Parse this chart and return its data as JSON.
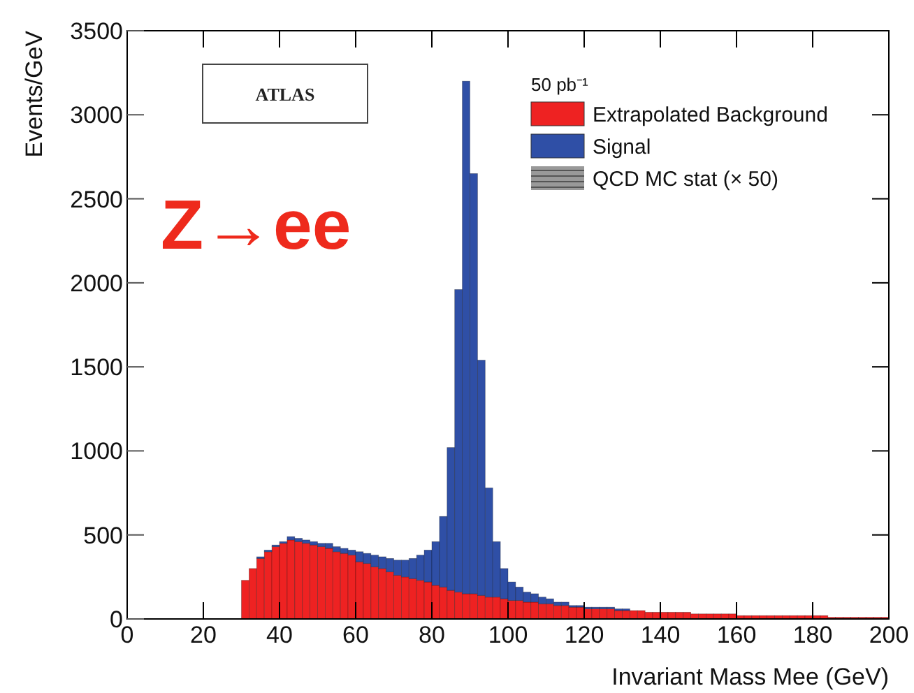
{
  "chart_data": {
    "type": "bar",
    "stacked": true,
    "xlabel": "Invariant Mass Mee (GeV)",
    "ylabel": "Events/GeV",
    "legend_title": "50 pb⁻¹",
    "legend": "top right",
    "annotations": [
      "ATLAS",
      "Z→ee",
      "QCD MC stat (× 50)"
    ],
    "x": [
      31,
      33,
      35,
      37,
      39,
      41,
      43,
      45,
      47,
      49,
      51,
      53,
      55,
      57,
      59,
      61,
      63,
      65,
      67,
      69,
      71,
      73,
      75,
      77,
      79,
      81,
      83,
      85,
      87,
      89,
      91,
      93,
      95,
      97,
      99,
      101,
      103,
      105,
      107,
      109,
      111,
      113,
      115,
      117,
      119,
      121,
      123,
      125,
      127,
      129,
      131,
      133,
      135,
      137,
      139,
      141,
      143,
      145,
      147,
      149,
      151,
      153,
      155,
      157,
      159,
      161,
      163,
      165,
      167,
      169,
      171,
      173,
      175,
      177,
      179,
      181,
      183,
      185,
      187,
      189,
      191,
      193,
      195,
      197,
      199
    ],
    "series": [
      {
        "name": "Extrapolated Background",
        "color": "#ee2222",
        "values": [
          230,
          300,
          360,
          400,
          430,
          450,
          470,
          460,
          450,
          440,
          430,
          420,
          400,
          390,
          380,
          340,
          330,
          310,
          300,
          280,
          260,
          250,
          240,
          230,
          220,
          200,
          190,
          170,
          160,
          150,
          150,
          140,
          130,
          130,
          120,
          110,
          110,
          100,
          100,
          90,
          90,
          80,
          80,
          70,
          70,
          60,
          60,
          60,
          60,
          50,
          50,
          50,
          50,
          40,
          40,
          40,
          40,
          40,
          40,
          30,
          30,
          30,
          30,
          30,
          30,
          20,
          20,
          20,
          20,
          20,
          20,
          20,
          20,
          20,
          20,
          20,
          20,
          10,
          10,
          10,
          10,
          10,
          10,
          10,
          10
        ]
      },
      {
        "name": "Signal",
        "color": "#2f4fa6",
        "values": [
          0,
          0,
          10,
          10,
          10,
          10,
          20,
          20,
          20,
          20,
          20,
          30,
          30,
          30,
          30,
          60,
          60,
          70,
          70,
          80,
          90,
          100,
          120,
          150,
          190,
          260,
          420,
          850,
          1800,
          3050,
          2500,
          1400,
          650,
          330,
          180,
          110,
          80,
          60,
          50,
          40,
          30,
          20,
          20,
          10,
          10,
          10,
          10,
          10,
          10,
          10,
          10,
          0,
          0,
          0,
          0,
          0,
          0,
          0,
          0,
          0,
          0,
          0,
          0,
          0,
          0,
          0,
          0,
          0,
          0,
          0,
          0,
          0,
          0,
          0,
          0,
          0,
          0,
          0,
          0,
          0,
          0,
          0,
          0,
          0,
          0
        ]
      }
    ],
    "xlim": [
      0,
      200
    ],
    "xticks": [
      0,
      20,
      40,
      60,
      80,
      100,
      120,
      140,
      160,
      180,
      200
    ],
    "ylim": [
      0,
      3500
    ],
    "yticks": [
      0,
      500,
      1000,
      1500,
      2000,
      2500,
      3000,
      3500
    ]
  }
}
